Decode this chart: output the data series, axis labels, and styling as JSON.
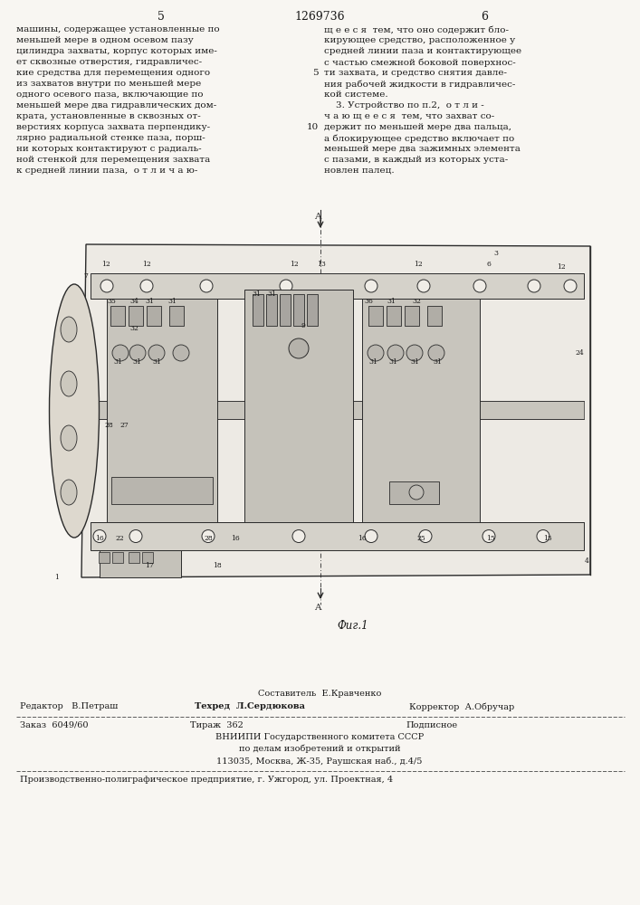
{
  "bg_color": "#ffffff",
  "page_color": "#f8f6f2",
  "title_center": "1269736",
  "col_left_num": "5",
  "col_right_num": "6",
  "text_left": [
    "машины, содержащее установленные по",
    "меньшей мере в одном осевом пазу",
    "цилиндра захваты, корпус которых име-",
    "ет сквозные отверстия, гидравличес-",
    "кие средства для перемещения одного",
    "из захватов внутри по меньшей мере",
    "одного осевого паза, включающие по",
    "меньшей мере два гидравлических дом-",
    "крата, установленные в сквозных от-",
    "верстиях корпуса захвата перпендику-",
    "лярно радиальной стенке паза, порш-",
    "ни которых контактируют с радиаль-",
    "ной стенкой для перемещения захвата",
    "к средней линии паза,  о т л и ч а ю-"
  ],
  "text_right": [
    "щ е е с я  тем, что оно содержит бло-",
    "кирующее средство, расположенное у",
    "средней линии паза и контактирующее",
    "с частью смежной боковой поверхнос-",
    "ти захвата, и средство снятия давле-",
    "ния рабочей жидкости в гидравличес-",
    "кой системе.",
    "    3. Устройство по п.2,  о т л и -",
    "ч а ю щ е е с я  тем, что захват со-",
    "держит по меньшей мере два пальца,",
    "а блокирующее средство включает по",
    "меньшей мере два зажимных элемента",
    "с пазами, в каждый из которых уста-",
    "новлен палец."
  ],
  "fig_caption": "Фиг.1",
  "footer_composer": "Составитель  Е.Кравченко",
  "footer_editor": "Редактор   В.Петраш",
  "footer_tech": "Техред  Л.Сердюкова",
  "footer_corrector": "Корректор  А.Обручар",
  "footer_order": "Заказ  6049/60",
  "footer_print": "Тираж  362",
  "footer_signed": "Подписное",
  "footer_vniip1": "ВНИИПИ Государственного комитета СССР",
  "footer_vniip2": "по делам изобретений и открытий",
  "footer_vniip3": "113035, Москва, Ж-35, Раушская наб., д.4/5",
  "footer_prod": "Производственно-полиграфическое предприятие, г. Ужгород, ул. Проектная, 4",
  "text_fontsize": 7.5,
  "footer_fontsize": 7.0
}
